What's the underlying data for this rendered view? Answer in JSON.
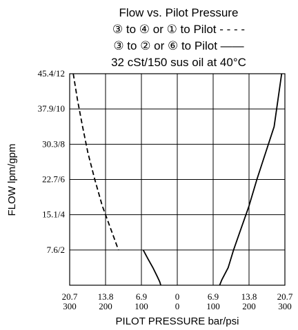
{
  "chart_data": {
    "type": "line",
    "title": "Flow vs. Pilot Pressure",
    "subtitle_lines": [
      "③ to ④ or ① to Pilot - - - -",
      "③ to ② or ⑥ to Pilot ——",
      "32 cSt/150 sus oil at 40°C"
    ],
    "xlabel": "PILOT PRESSURE bar/psi",
    "ylabel": "FLOW lpm/gpm",
    "x_ticks": [
      {
        "top": "20.7",
        "bottom": "300"
      },
      {
        "top": "13.8",
        "bottom": "200"
      },
      {
        "top": "6.9",
        "bottom": "100"
      },
      {
        "top": "0",
        "bottom": "0"
      },
      {
        "top": "6.9",
        "bottom": "100"
      },
      {
        "top": "13.8",
        "bottom": "200"
      },
      {
        "top": "20.7",
        "bottom": "300"
      }
    ],
    "y_ticks": [
      "45.4/12",
      "37.9/10",
      "30.3/8",
      "22.7/6",
      "15.1/4",
      "7.6/2"
    ],
    "xlim": [
      -300,
      300
    ],
    "ylim": [
      0,
      12
    ],
    "grid": true,
    "series": [
      {
        "style": "dashed",
        "x": [
          -290,
          -278,
          -264,
          -249,
          -230,
          -209,
          -182,
          -164
        ],
        "y": [
          12,
          10.5,
          9,
          7.5,
          6,
          4.5,
          3,
          2
        ]
      },
      {
        "style": "solid",
        "x": [
          -95,
          -82,
          -68,
          -56,
          -49,
          -46
        ],
        "y": [
          2,
          1.5,
          1,
          0.5,
          0.2,
          0
        ]
      },
      {
        "style": "solid",
        "x": [
          118,
          124,
          142,
          157,
          174,
          200,
          222,
          246,
          270,
          291
        ],
        "y": [
          0,
          0.3,
          1,
          2,
          3,
          4.5,
          6,
          7.5,
          9,
          12
        ]
      }
    ]
  }
}
